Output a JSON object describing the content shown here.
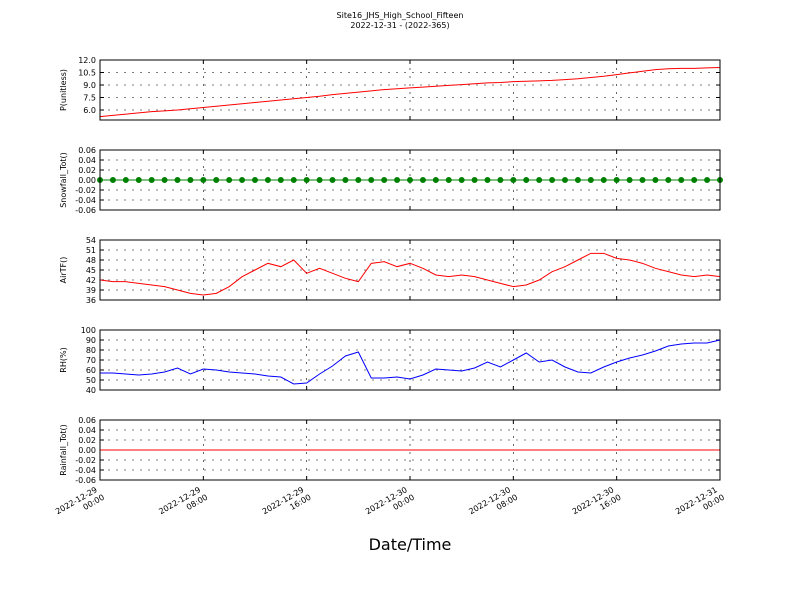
{
  "title": "Site16_JHS_High_School_Fifteen",
  "subtitle": "2022-12-31 - (2022-365)",
  "xlabel": "Date/Time",
  "x": [
    "2022-12-29 00:00",
    "2022-12-29 01:00",
    "2022-12-29 02:00",
    "2022-12-29 03:00",
    "2022-12-29 04:00",
    "2022-12-29 05:00",
    "2022-12-29 06:00",
    "2022-12-29 07:00",
    "2022-12-29 08:00",
    "2022-12-29 09:00",
    "2022-12-29 10:00",
    "2022-12-29 11:00",
    "2022-12-29 12:00",
    "2022-12-29 13:00",
    "2022-12-29 14:00",
    "2022-12-29 15:00",
    "2022-12-29 16:00",
    "2022-12-29 17:00",
    "2022-12-29 18:00",
    "2022-12-29 19:00",
    "2022-12-29 20:00",
    "2022-12-29 21:00",
    "2022-12-29 22:00",
    "2022-12-29 23:00",
    "2022-12-30 00:00",
    "2022-12-30 01:00",
    "2022-12-30 02:00",
    "2022-12-30 03:00",
    "2022-12-30 04:00",
    "2022-12-30 05:00",
    "2022-12-30 06:00",
    "2022-12-30 07:00",
    "2022-12-30 08:00",
    "2022-12-30 09:00",
    "2022-12-30 10:00",
    "2022-12-30 11:00",
    "2022-12-30 12:00",
    "2022-12-30 13:00",
    "2022-12-30 14:00",
    "2022-12-30 15:00",
    "2022-12-30 16:00",
    "2022-12-30 17:00",
    "2022-12-30 18:00",
    "2022-12-30 19:00",
    "2022-12-30 20:00",
    "2022-12-30 21:00",
    "2022-12-30 22:00",
    "2022-12-30 23:00",
    "2022-12-31 00:00"
  ],
  "xlim": [
    "2022-12-29 00:00",
    "2022-12-31 00:00"
  ],
  "xticks": [
    "2022-12-29 00:00",
    "2022-12-29 08:00",
    "2022-12-29 16:00",
    "2022-12-30 00:00",
    "2022-12-30 08:00",
    "2022-12-30 16:00",
    "2022-12-31 00:00"
  ],
  "chart_data": [
    {
      "type": "line",
      "ylabel": "P(unitless)",
      "color": "#ff0000",
      "grid": true,
      "ylim": [
        4.8,
        12
      ],
      "yticks": [
        {
          "value": 6,
          "label": "6.0"
        },
        {
          "value": 7.5,
          "label": "7.5"
        },
        {
          "value": 9,
          "label": "9.0"
        },
        {
          "value": 10.5,
          "label": "10.5"
        },
        {
          "value": 12,
          "label": "12.0"
        }
      ],
      "values": [
        5.2,
        5.35,
        5.5,
        5.65,
        5.8,
        5.9,
        6.0,
        6.15,
        6.3,
        6.45,
        6.6,
        6.75,
        6.9,
        7.05,
        7.2,
        7.35,
        7.5,
        7.65,
        7.85,
        8.0,
        8.15,
        8.3,
        8.45,
        8.55,
        8.65,
        8.75,
        8.85,
        8.95,
        9.05,
        9.15,
        9.25,
        9.3,
        9.4,
        9.45,
        9.5,
        9.55,
        9.65,
        9.75,
        9.9,
        10.05,
        10.25,
        10.45,
        10.65,
        10.85,
        10.95,
        11.0,
        11.0,
        11.05,
        11.1
      ]
    },
    {
      "type": "line",
      "ylabel": "Snowfall_Tot()",
      "color": "#008000",
      "marker": true,
      "grid": true,
      "ylim": [
        -0.06,
        0.06
      ],
      "yticks": [
        {
          "value": -0.06,
          "label": "-0.06"
        },
        {
          "value": -0.04,
          "label": "-0.04"
        },
        {
          "value": -0.02,
          "label": "-0.02"
        },
        {
          "value": 0,
          "label": "0.00"
        },
        {
          "value": 0.02,
          "label": "0.02"
        },
        {
          "value": 0.04,
          "label": "0.04"
        },
        {
          "value": 0.06,
          "label": "0.06"
        }
      ],
      "values": [
        0,
        0,
        0,
        0,
        0,
        0,
        0,
        0,
        0,
        0,
        0,
        0,
        0,
        0,
        0,
        0,
        0,
        0,
        0,
        0,
        0,
        0,
        0,
        0,
        0,
        0,
        0,
        0,
        0,
        0,
        0,
        0,
        0,
        0,
        0,
        0,
        0,
        0,
        0,
        0,
        0,
        0,
        0,
        0,
        0,
        0,
        0,
        0,
        0
      ]
    },
    {
      "type": "line",
      "ylabel": "AirTF()",
      "color": "#ff0000",
      "grid": true,
      "ylim": [
        36,
        54
      ],
      "yticks": [
        36,
        39,
        42,
        45,
        48,
        51,
        54
      ],
      "values": [
        42,
        41.5,
        41.5,
        41,
        40.5,
        40,
        39,
        38,
        37.5,
        38,
        40,
        43,
        45,
        47,
        46,
        48,
        44,
        45.5,
        44,
        42.5,
        41.5,
        47,
        47.5,
        46,
        47,
        45.5,
        43.5,
        43,
        43.5,
        43,
        42,
        41,
        40,
        40.5,
        42,
        44.5,
        46,
        48,
        50,
        50,
        48.5,
        48,
        47,
        45.5,
        44.5,
        43.5,
        43,
        43.5,
        43
      ]
    },
    {
      "type": "line",
      "ylabel": "RH(%)",
      "color": "#0000ff",
      "grid": true,
      "ylim": [
        40,
        100
      ],
      "yticks": [
        40,
        50,
        60,
        70,
        80,
        90,
        100
      ],
      "values": [
        57,
        57,
        56,
        55,
        56,
        58,
        62,
        56,
        61,
        60,
        58,
        57,
        56,
        54,
        53,
        46,
        47,
        56,
        64,
        74,
        78,
        52,
        52,
        53,
        51,
        55,
        61,
        60,
        59,
        62,
        68,
        63,
        70,
        77,
        68,
        70,
        63,
        58,
        57,
        63,
        68,
        72,
        75,
        79,
        84,
        86,
        87,
        87,
        90
      ]
    },
    {
      "type": "line",
      "ylabel": "Rainfall_Tot()",
      "color": "#ff0000",
      "grid": true,
      "ylim": [
        -0.06,
        0.06
      ],
      "yticks": [
        {
          "value": -0.06,
          "label": "-0.06"
        },
        {
          "value": -0.04,
          "label": "-0.04"
        },
        {
          "value": -0.02,
          "label": "-0.02"
        },
        {
          "value": 0,
          "label": "0.00"
        },
        {
          "value": 0.02,
          "label": "0.02"
        },
        {
          "value": 0.04,
          "label": "0.04"
        },
        {
          "value": 0.06,
          "label": "0.06"
        }
      ],
      "values": [
        0,
        0,
        0,
        0,
        0,
        0,
        0,
        0,
        0,
        0,
        0,
        0,
        0,
        0,
        0,
        0,
        0,
        0,
        0,
        0,
        0,
        0,
        0,
        0,
        0,
        0,
        0,
        0,
        0,
        0,
        0,
        0,
        0,
        0,
        0,
        0,
        0,
        0,
        0,
        0,
        0,
        0,
        0,
        0,
        0,
        0,
        0,
        0,
        0
      ]
    }
  ]
}
